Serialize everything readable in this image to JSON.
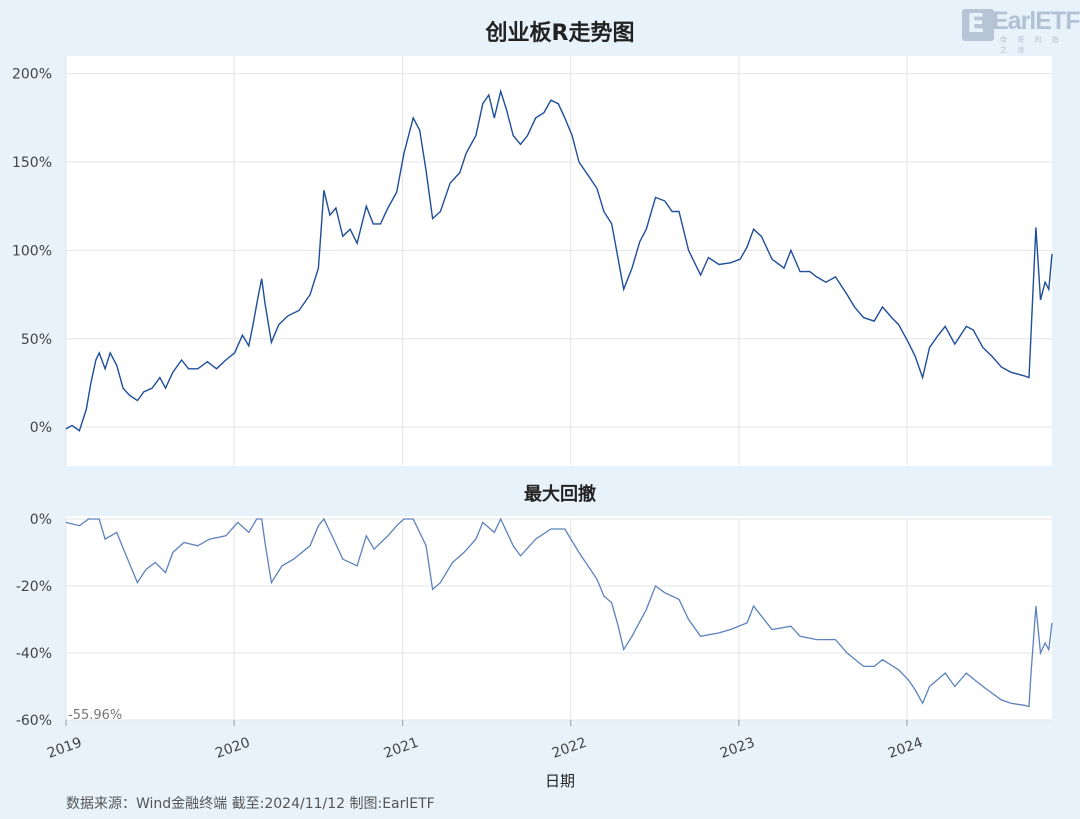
{
  "title": "创业板R走势图",
  "subtitle": "最大回撤",
  "xlabel": "日期",
  "footer": "数据来源：Wind金融终端 截至:2024/11/12 制图:EarlETF",
  "logo": {
    "badge": "E",
    "text": "EarlETF",
    "sub": "帝 哥 的 指 之 道"
  },
  "colors": {
    "background": "#e8f2fa",
    "plot": "#ffffff",
    "line": "#1f4e9a",
    "drawdown_line": "#5b82bd",
    "grid": "#e4e4e4",
    "text": "#333333"
  },
  "chart_data": [
    {
      "type": "line",
      "title": "创业板R走势图",
      "xlabel": "日期",
      "ylabel": "",
      "ylim": [
        -22,
        210
      ],
      "yticks": [
        0,
        50,
        100,
        150,
        200
      ],
      "ytick_labels": [
        "0%",
        "50%",
        "100%",
        "150%",
        "200%"
      ],
      "xlim": [
        "2019-01-02",
        "2024-11-12"
      ],
      "xtick_labels": [
        "2019",
        "2020",
        "2021",
        "2022",
        "2023",
        "2024"
      ],
      "grid": true,
      "series": [
        {
          "values": [
            [
              "2019-01-02",
              -1
            ],
            [
              "2019-01-15",
              1
            ],
            [
              "2019-01-31",
              -2
            ],
            [
              "2019-02-15",
              10
            ],
            [
              "2019-02-25",
              25
            ],
            [
              "2019-03-08",
              38
            ],
            [
              "2019-03-15",
              42
            ],
            [
              "2019-03-28",
              33
            ],
            [
              "2019-04-08",
              42
            ],
            [
              "2019-04-22",
              35
            ],
            [
              "2019-05-06",
              22
            ],
            [
              "2019-05-20",
              18
            ],
            [
              "2019-06-06",
              15
            ],
            [
              "2019-06-20",
              20
            ],
            [
              "2019-07-08",
              22
            ],
            [
              "2019-07-25",
              28
            ],
            [
              "2019-08-06",
              22
            ],
            [
              "2019-08-22",
              31
            ],
            [
              "2019-09-10",
              38
            ],
            [
              "2019-09-25",
              33
            ],
            [
              "2019-10-15",
              33
            ],
            [
              "2019-11-05",
              37
            ],
            [
              "2019-11-25",
              33
            ],
            [
              "2019-12-15",
              38
            ],
            [
              "2020-01-03",
              42
            ],
            [
              "2020-01-20",
              52
            ],
            [
              "2020-02-03",
              46
            ],
            [
              "2020-02-12",
              58
            ],
            [
              "2020-02-24",
              75
            ],
            [
              "2020-03-02",
              84
            ],
            [
              "2020-03-09",
              70
            ],
            [
              "2020-03-23",
              48
            ],
            [
              "2020-04-08",
              58
            ],
            [
              "2020-04-28",
              63
            ],
            [
              "2020-05-22",
              66
            ],
            [
              "2020-06-15",
              75
            ],
            [
              "2020-07-03",
              90
            ],
            [
              "2020-07-15",
              134
            ],
            [
              "2020-07-28",
              120
            ],
            [
              "2020-08-10",
              124
            ],
            [
              "2020-08-25",
              108
            ],
            [
              "2020-09-10",
              112
            ],
            [
              "2020-09-25",
              104
            ],
            [
              "2020-10-15",
              125
            ],
            [
              "2020-10-30",
              115
            ],
            [
              "2020-11-15",
              115
            ],
            [
              "2020-12-01",
              124
            ],
            [
              "2020-12-20",
              133
            ],
            [
              "2021-01-05",
              155
            ],
            [
              "2021-01-25",
              175
            ],
            [
              "2021-02-08",
              168
            ],
            [
              "2021-02-22",
              145
            ],
            [
              "2021-03-08",
              118
            ],
            [
              "2021-03-25",
              122
            ],
            [
              "2021-04-15",
              138
            ],
            [
              "2021-05-06",
              144
            ],
            [
              "2021-05-20",
              155
            ],
            [
              "2021-06-10",
              165
            ],
            [
              "2021-06-25",
              183
            ],
            [
              "2021-07-08",
              188
            ],
            [
              "2021-07-20",
              175
            ],
            [
              "2021-08-03",
              190
            ],
            [
              "2021-08-15",
              180
            ],
            [
              "2021-08-30",
              165
            ],
            [
              "2021-09-15",
              160
            ],
            [
              "2021-09-30",
              165
            ],
            [
              "2021-10-18",
              175
            ],
            [
              "2021-11-05",
              178
            ],
            [
              "2021-11-20",
              185
            ],
            [
              "2021-12-06",
              183
            ],
            [
              "2021-12-20",
              175
            ],
            [
              "2022-01-05",
              165
            ],
            [
              "2022-01-20",
              150
            ],
            [
              "2022-02-10",
              142
            ],
            [
              "2022-02-28",
              135
            ],
            [
              "2022-03-15",
              122
            ],
            [
              "2022-04-01",
              115
            ],
            [
              "2022-04-15",
              95
            ],
            [
              "2022-04-27",
              78
            ],
            [
              "2022-05-15",
              90
            ],
            [
              "2022-06-01",
              105
            ],
            [
              "2022-06-15",
              112
            ],
            [
              "2022-07-05",
              130
            ],
            [
              "2022-07-25",
              128
            ],
            [
              "2022-08-10",
              122
            ],
            [
              "2022-08-25",
              122
            ],
            [
              "2022-09-15",
              100
            ],
            [
              "2022-10-11",
              86
            ],
            [
              "2022-10-28",
              96
            ],
            [
              "2022-11-20",
              92
            ],
            [
              "2022-12-15",
              93
            ],
            [
              "2023-01-05",
              95
            ],
            [
              "2023-01-20",
              102
            ],
            [
              "2023-02-03",
              112
            ],
            [
              "2023-02-20",
              108
            ],
            [
              "2023-03-15",
              95
            ],
            [
              "2023-04-10",
              90
            ],
            [
              "2023-04-25",
              100
            ],
            [
              "2023-05-15",
              88
            ],
            [
              "2023-06-05",
              88
            ],
            [
              "2023-06-20",
              85
            ],
            [
              "2023-07-10",
              82
            ],
            [
              "2023-07-31",
              85
            ],
            [
              "2023-08-25",
              75
            ],
            [
              "2023-09-10",
              68
            ],
            [
              "2023-09-30",
              62
            ],
            [
              "2023-10-23",
              60
            ],
            [
              "2023-11-10",
              68
            ],
            [
              "2023-11-30",
              62
            ],
            [
              "2023-12-15",
              58
            ],
            [
              "2024-01-05",
              48
            ],
            [
              "2024-01-20",
              40
            ],
            [
              "2024-02-05",
              28
            ],
            [
              "2024-02-20",
              45
            ],
            [
              "2024-03-10",
              52
            ],
            [
              "2024-03-25",
              57
            ],
            [
              "2024-04-15",
              47
            ],
            [
              "2024-05-10",
              57
            ],
            [
              "2024-05-25",
              55
            ],
            [
              "2024-06-15",
              45
            ],
            [
              "2024-07-05",
              40
            ],
            [
              "2024-07-25",
              34
            ],
            [
              "2024-08-15",
              31
            ],
            [
              "2024-09-13",
              29
            ],
            [
              "2024-09-23",
              28
            ],
            [
              "2024-09-27",
              50
            ],
            [
              "2024-10-08",
              113
            ],
            [
              "2024-10-18",
              72
            ],
            [
              "2024-10-28",
              82
            ],
            [
              "2024-11-05",
              78
            ],
            [
              "2024-11-12",
              98
            ]
          ]
        }
      ]
    },
    {
      "type": "line",
      "title": "最大回撤",
      "xlabel": "日期",
      "ylabel": "",
      "ylim": [
        -60,
        0
      ],
      "yticks": [
        0,
        -20,
        -40,
        -60
      ],
      "ytick_labels": [
        "0%",
        "-20%",
        "-40%",
        "-60%"
      ],
      "annotation": "-55.96%",
      "grid": true,
      "series": [
        {
          "values": [
            [
              "2019-01-02",
              -1
            ],
            [
              "2019-01-31",
              -2
            ],
            [
              "2019-02-20",
              0
            ],
            [
              "2019-03-15",
              0
            ],
            [
              "2019-03-28",
              -6
            ],
            [
              "2019-04-22",
              -4
            ],
            [
              "2019-05-10",
              -10
            ],
            [
              "2019-06-06",
              -19
            ],
            [
              "2019-06-25",
              -15
            ],
            [
              "2019-07-15",
              -13
            ],
            [
              "2019-08-06",
              -16
            ],
            [
              "2019-08-22",
              -10
            ],
            [
              "2019-09-15",
              -7
            ],
            [
              "2019-10-15",
              -8
            ],
            [
              "2019-11-10",
              -6
            ],
            [
              "2019-12-15",
              -5
            ],
            [
              "2020-01-10",
              -1
            ],
            [
              "2020-02-03",
              -4
            ],
            [
              "2020-02-20",
              0
            ],
            [
              "2020-03-02",
              0
            ],
            [
              "2020-03-09",
              -7
            ],
            [
              "2020-03-23",
              -19
            ],
            [
              "2020-04-15",
              -14
            ],
            [
              "2020-05-10",
              -12
            ],
            [
              "2020-06-15",
              -8
            ],
            [
              "2020-07-03",
              -2
            ],
            [
              "2020-07-15",
              0
            ],
            [
              "2020-08-05",
              -6
            ],
            [
              "2020-08-25",
              -12
            ],
            [
              "2020-09-25",
              -14
            ],
            [
              "2020-10-15",
              -5
            ],
            [
              "2020-11-01",
              -9
            ],
            [
              "2020-12-01",
              -5
            ],
            [
              "2020-12-20",
              -2
            ],
            [
              "2021-01-05",
              0
            ],
            [
              "2021-01-25",
              0
            ],
            [
              "2021-02-22",
              -8
            ],
            [
              "2021-03-08",
              -21
            ],
            [
              "2021-03-25",
              -19
            ],
            [
              "2021-04-20",
              -13
            ],
            [
              "2021-05-15",
              -10
            ],
            [
              "2021-06-10",
              -6
            ],
            [
              "2021-06-25",
              -1
            ],
            [
              "2021-07-20",
              -4
            ],
            [
              "2021-08-03",
              0
            ],
            [
              "2021-08-30",
              -8
            ],
            [
              "2021-09-15",
              -11
            ],
            [
              "2021-10-18",
              -6
            ],
            [
              "2021-11-20",
              -3
            ],
            [
              "2021-12-20",
              -3
            ],
            [
              "2022-01-20",
              -10
            ],
            [
              "2022-02-28",
              -18
            ],
            [
              "2022-03-15",
              -23
            ],
            [
              "2022-04-01",
              -25
            ],
            [
              "2022-04-15",
              -32
            ],
            [
              "2022-04-27",
              -39
            ],
            [
              "2022-05-15",
              -35
            ],
            [
              "2022-06-15",
              -27
            ],
            [
              "2022-07-05",
              -20
            ],
            [
              "2022-07-25",
              -22
            ],
            [
              "2022-08-25",
              -24
            ],
            [
              "2022-09-15",
              -30
            ],
            [
              "2022-10-11",
              -35
            ],
            [
              "2022-11-20",
              -34
            ],
            [
              "2022-12-15",
              -33
            ],
            [
              "2023-01-20",
              -31
            ],
            [
              "2023-02-03",
              -26
            ],
            [
              "2023-03-15",
              -33
            ],
            [
              "2023-04-25",
              -32
            ],
            [
              "2023-05-15",
              -35
            ],
            [
              "2023-06-20",
              -36
            ],
            [
              "2023-07-31",
              -36
            ],
            [
              "2023-08-25",
              -40
            ],
            [
              "2023-09-30",
              -44
            ],
            [
              "2023-10-23",
              -44
            ],
            [
              "2023-11-10",
              -42
            ],
            [
              "2023-12-15",
              -45
            ],
            [
              "2024-01-05",
              -48
            ],
            [
              "2024-01-20",
              -51
            ],
            [
              "2024-02-05",
              -55
            ],
            [
              "2024-02-20",
              -50
            ],
            [
              "2024-03-25",
              -46
            ],
            [
              "2024-04-15",
              -50
            ],
            [
              "2024-05-10",
              -46
            ],
            [
              "2024-06-15",
              -50
            ],
            [
              "2024-07-25",
              -54
            ],
            [
              "2024-08-15",
              -55
            ],
            [
              "2024-09-13",
              -55.6
            ],
            [
              "2024-09-23",
              -55.96
            ],
            [
              "2024-09-27",
              -47
            ],
            [
              "2024-10-08",
              -26
            ],
            [
              "2024-10-18",
              -40
            ],
            [
              "2024-10-28",
              -37
            ],
            [
              "2024-11-05",
              -39
            ],
            [
              "2024-11-12",
              -31
            ]
          ]
        }
      ]
    }
  ]
}
